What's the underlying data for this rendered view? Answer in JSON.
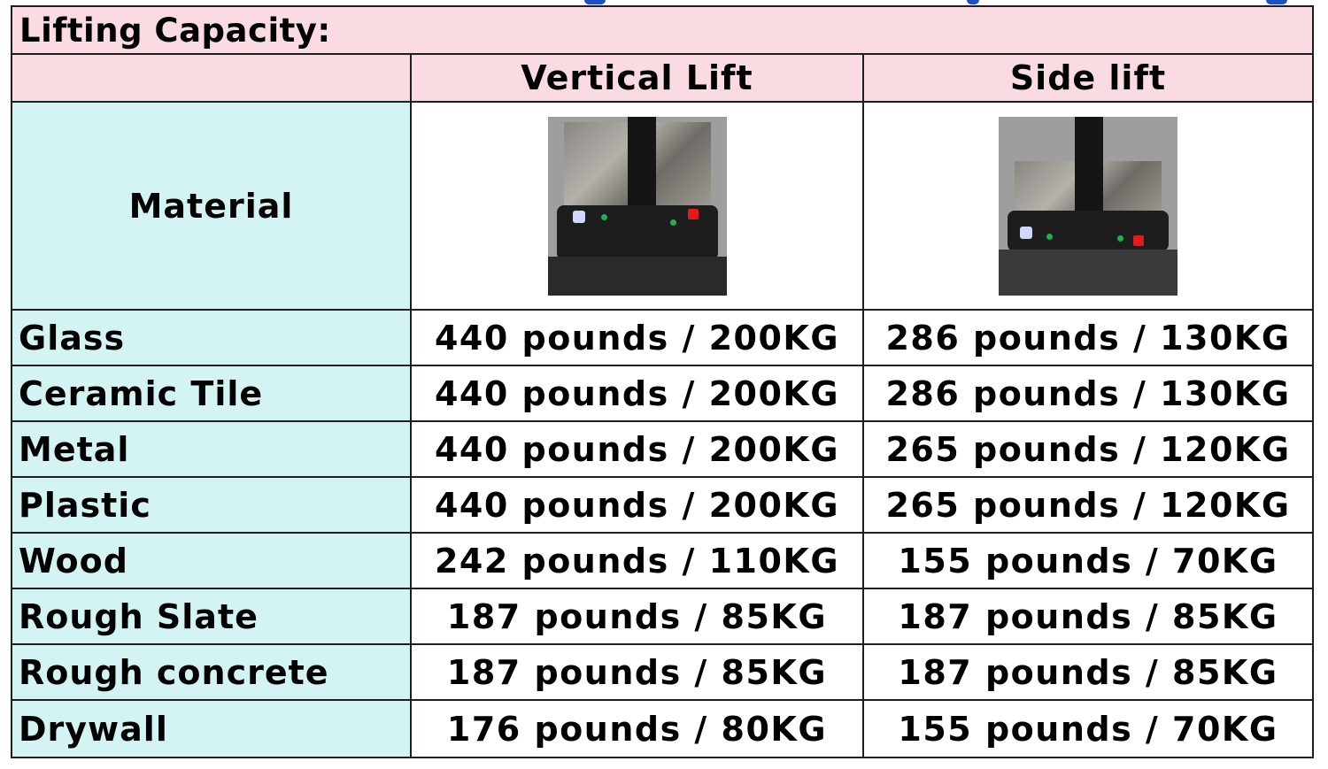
{
  "table": {
    "title": "Lifting Capacity:",
    "headers": {
      "vertical": "Vertical Lift",
      "side": "Side lift"
    },
    "material_header": "Material",
    "photos": {
      "vertical": "vertical-lift-photo",
      "side": "side-lift-photo"
    },
    "rows": [
      {
        "material": "Glass",
        "vertical": "440 pounds / 200KG",
        "side": "286 pounds / 130KG"
      },
      {
        "material": "Ceramic Tile",
        "vertical": "440 pounds / 200KG",
        "side": "286 pounds / 130KG"
      },
      {
        "material": "Metal",
        "vertical": "440 pounds / 200KG",
        "side": "265 pounds / 120KG"
      },
      {
        "material": "Plastic",
        "vertical": "440 pounds / 200KG",
        "side": "265 pounds / 120KG"
      },
      {
        "material": "Wood",
        "vertical": "242 pounds / 110KG",
        "side": "155 pounds / 70KG"
      },
      {
        "material": "Rough Slate",
        "vertical": "187 pounds / 85KG",
        "side": "187 pounds / 85KG"
      },
      {
        "material": "Rough concrete",
        "vertical": "187 pounds / 85KG",
        "side": "187 pounds / 85KG"
      },
      {
        "material": "Drywall",
        "vertical": "176 pounds / 80KG",
        "side": "155 pounds / 70KG"
      }
    ]
  },
  "colors": {
    "header_background": "#f9dbe1",
    "material_background": "#d4f4f4",
    "grid_line": "#1e1e1e",
    "top_fragment": "#1f4fc4"
  }
}
